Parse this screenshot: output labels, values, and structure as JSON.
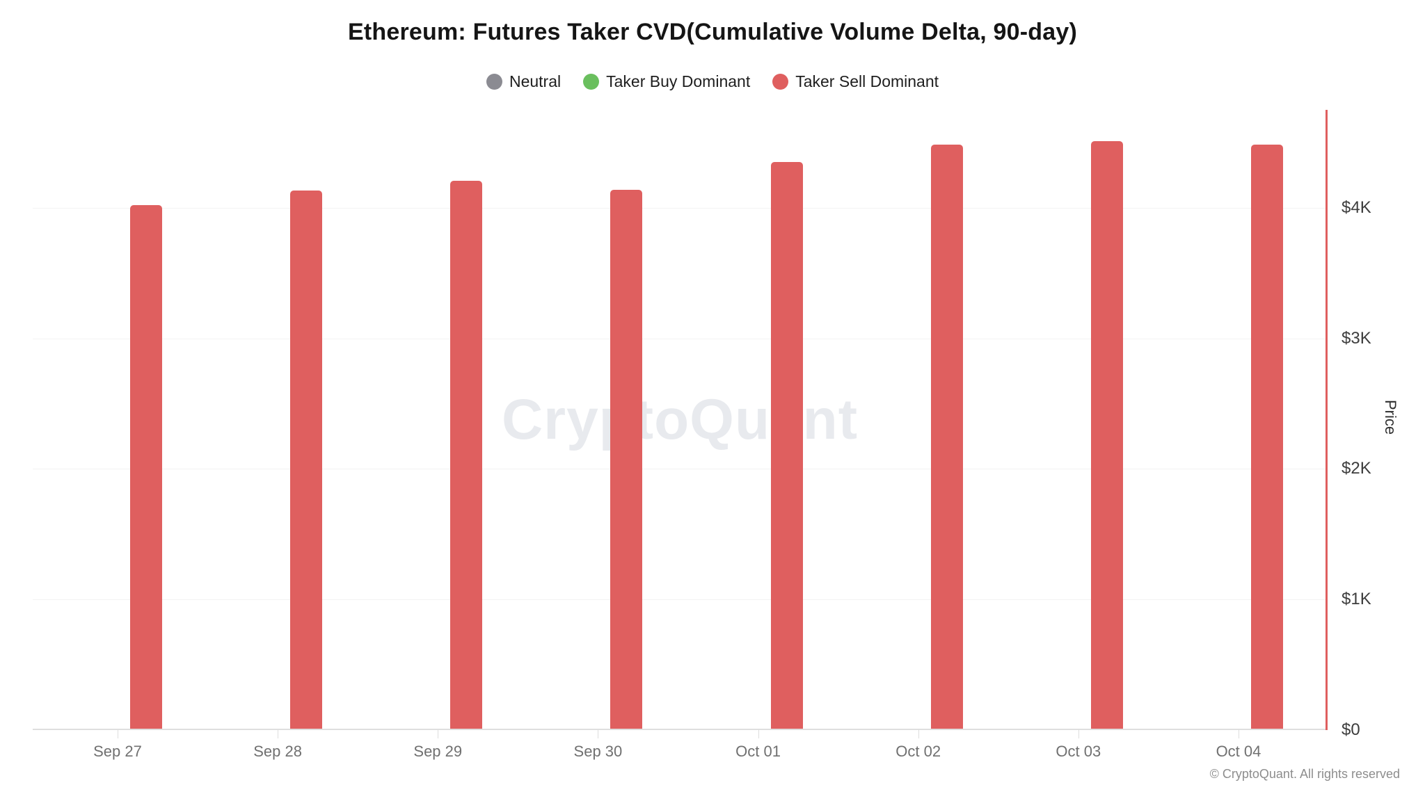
{
  "page": {
    "watermark": "CryptoQuant",
    "copyright": "© CryptoQuant. All rights reserved"
  },
  "legend": [
    {
      "label": "Neutral",
      "color": "#8b8b92"
    },
    {
      "label": "Taker Buy Dominant",
      "color": "#6abf5e"
    },
    {
      "label": "Taker Sell Dominant",
      "color": "#df5f5f"
    }
  ],
  "chart_data": {
    "type": "bar",
    "title": "Ethereum: Futures Taker CVD(Cumulative Volume Delta, 90-day)",
    "categories": [
      "Sep 27",
      "Sep 28",
      "Sep 29",
      "Sep 30",
      "Oct 01",
      "Oct 02",
      "Oct 03",
      "Oct 04"
    ],
    "series": [
      {
        "name": "Taker Sell Dominant",
        "values": [
          4020,
          4130,
          4205,
          4140,
          4350,
          4485,
          4510,
          4485
        ],
        "color": "#df5f5f"
      }
    ],
    "xlabel": "",
    "ylabel": "Price",
    "ylim": [
      0,
      4750
    ],
    "y_ticks": [
      {
        "label": "$0",
        "value": 0
      },
      {
        "label": "$1K",
        "value": 1000
      },
      {
        "label": "$2K",
        "value": 2000
      },
      {
        "label": "$3K",
        "value": 3000
      },
      {
        "label": "$4K",
        "value": 4000
      }
    ],
    "axis_color": "#df5f5f",
    "grid": "horizontal light gridlines at each $1K",
    "legend_position": "top center",
    "y_axis_side": "right"
  }
}
